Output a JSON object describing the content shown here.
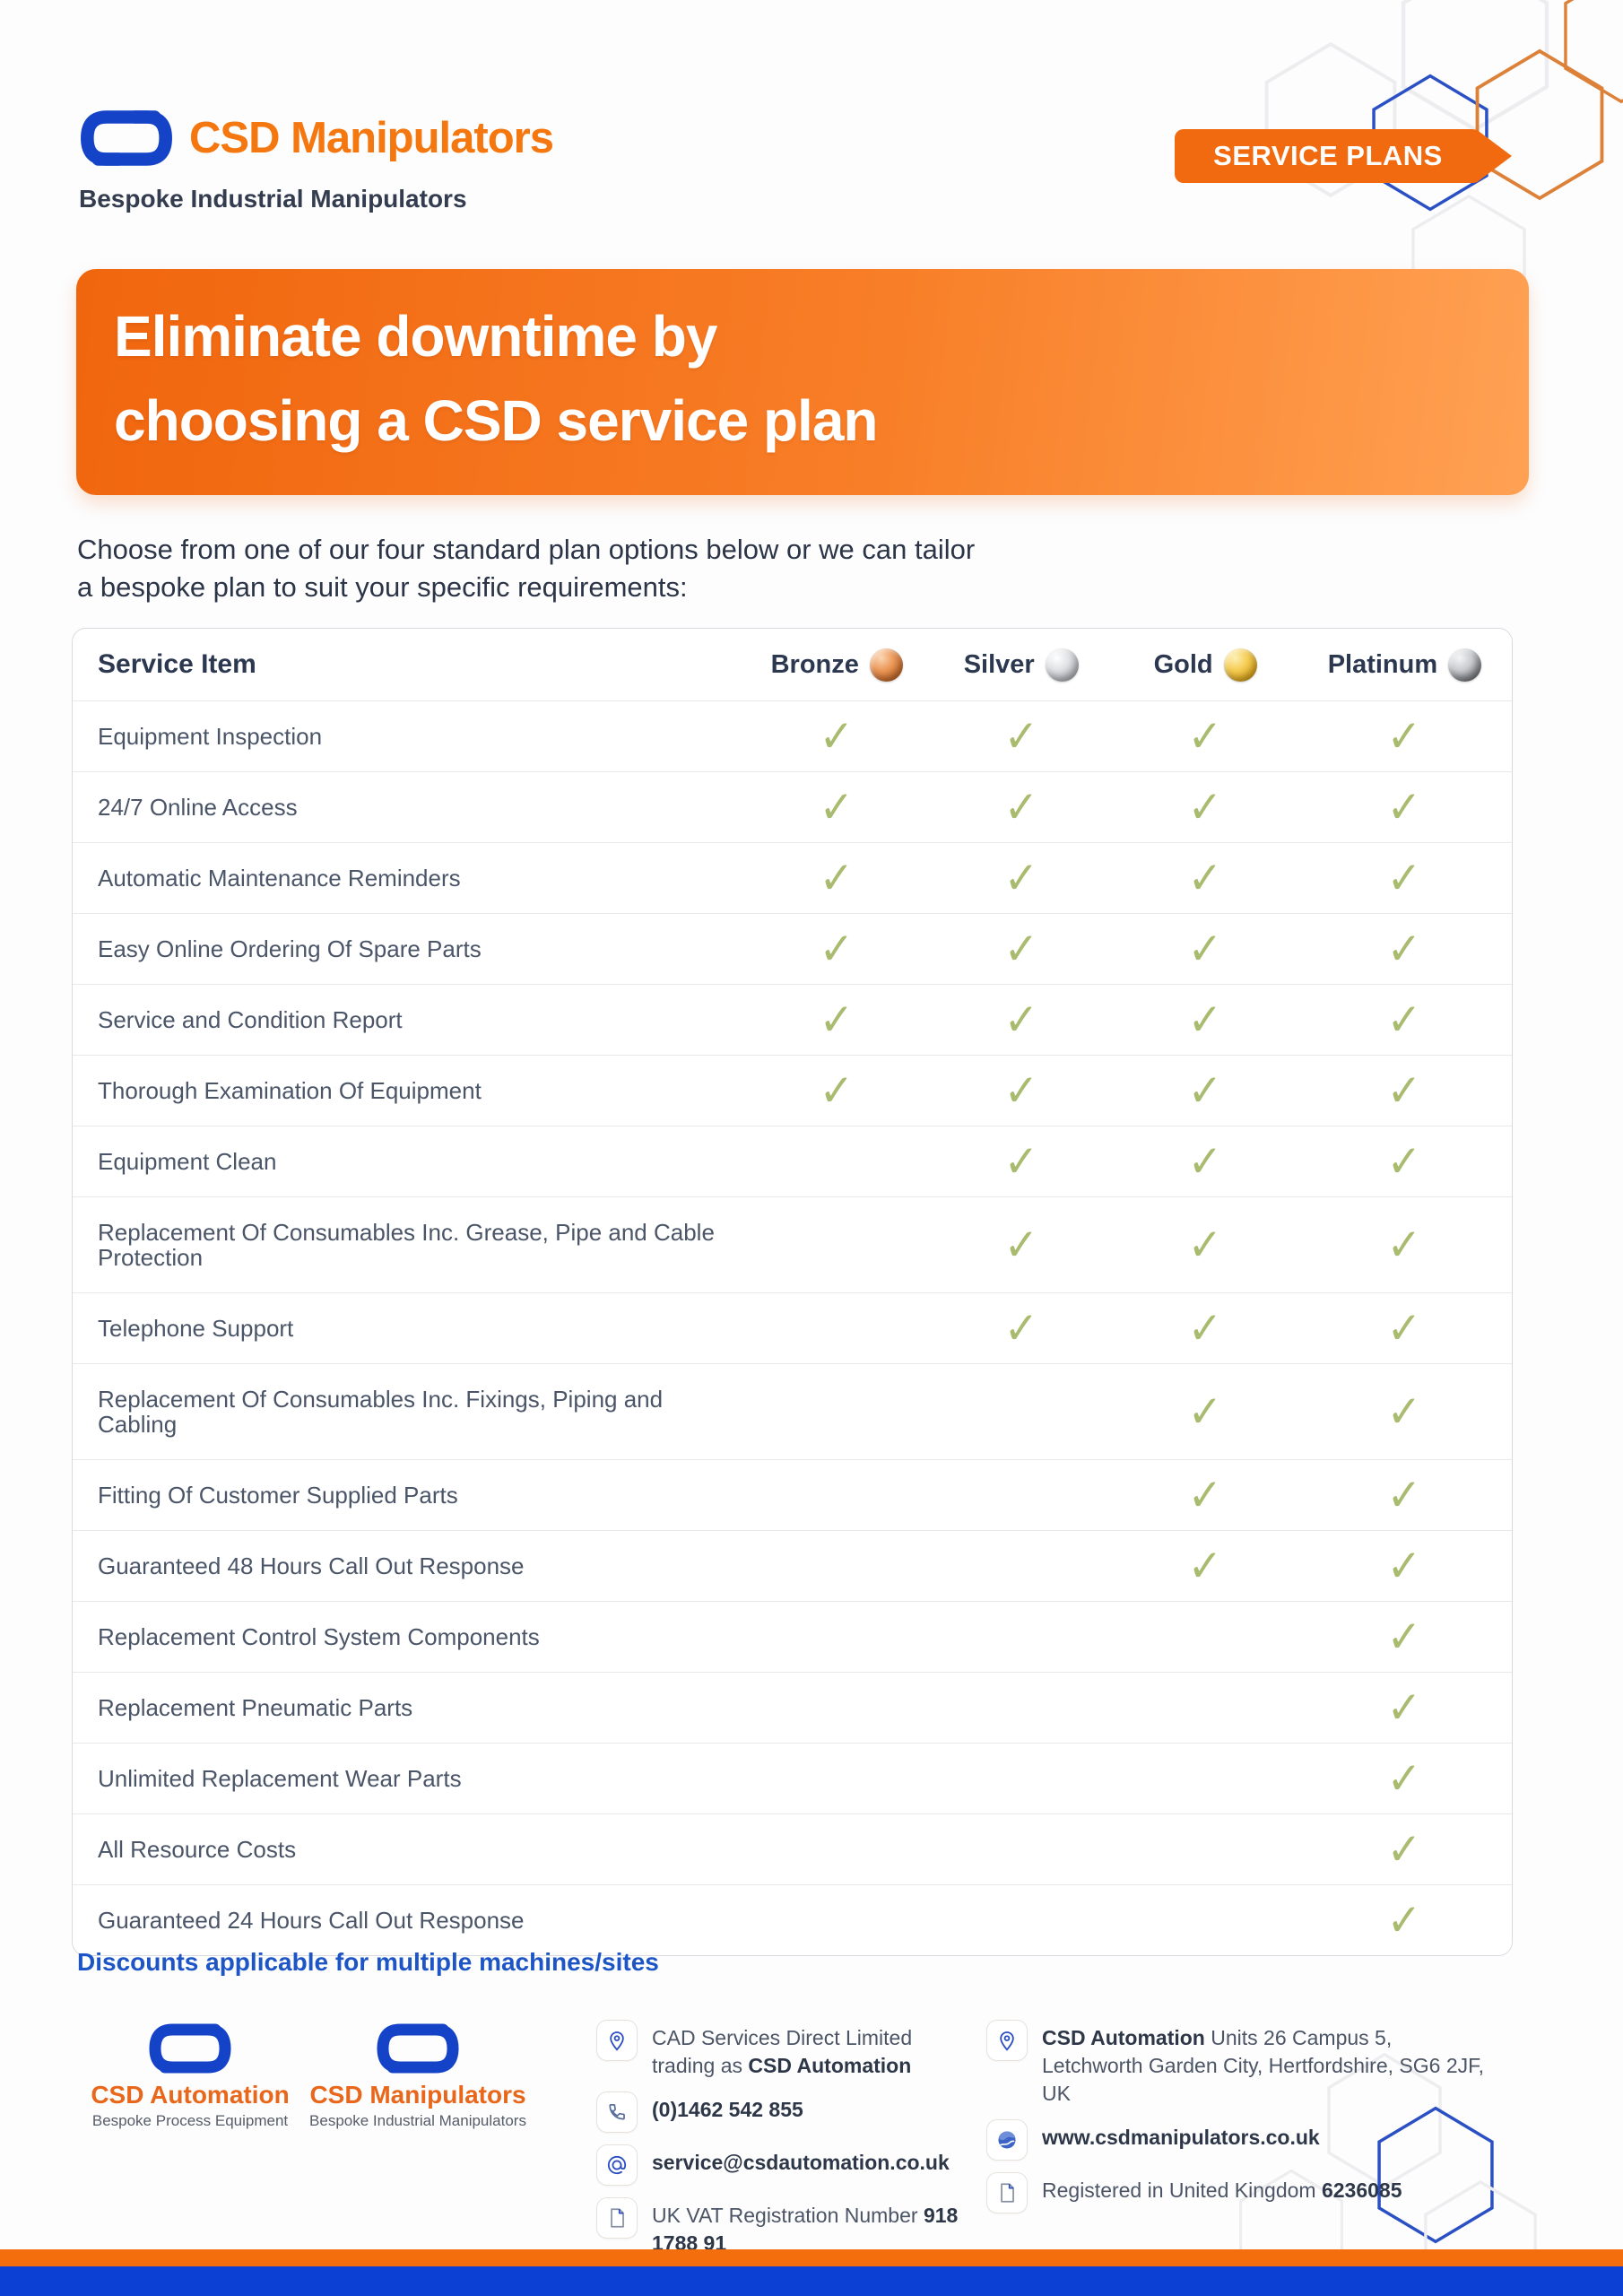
{
  "header": {
    "brand_name": "CSD Manipulators",
    "brand_tagline": "Bespoke Industrial Manipulators",
    "badge": "SERVICE PLANS"
  },
  "hero": {
    "title_line1": "Eliminate downtime by",
    "title_line2": "choosing a CSD service plan",
    "intro_line1": "Choose from one of our four standard plan options below or we can tailor",
    "intro_line2": "a bespoke plan to suit your specific requirements:"
  },
  "table": {
    "header": {
      "service_item": "Service Item",
      "plans": [
        {
          "label": "Bronze",
          "medal": "bronze"
        },
        {
          "label": "Silver",
          "medal": "silver"
        },
        {
          "label": "Gold",
          "medal": "gold"
        },
        {
          "label": "Platinum",
          "medal": "platinum"
        }
      ]
    },
    "check_symbol": "✓",
    "rows": [
      {
        "label": "Equipment Inspection",
        "plans": [
          true,
          true,
          true,
          true
        ]
      },
      {
        "label": "24/7 Online Access",
        "plans": [
          true,
          true,
          true,
          true
        ]
      },
      {
        "label": "Automatic Maintenance Reminders",
        "plans": [
          true,
          true,
          true,
          true
        ]
      },
      {
        "label": "Easy Online Ordering Of Spare Parts",
        "plans": [
          true,
          true,
          true,
          true
        ]
      },
      {
        "label": "Service and Condition Report",
        "plans": [
          true,
          true,
          true,
          true
        ]
      },
      {
        "label": "Thorough Examination Of Equipment",
        "plans": [
          true,
          true,
          true,
          true
        ]
      },
      {
        "label": "Equipment Clean",
        "plans": [
          false,
          true,
          true,
          true
        ]
      },
      {
        "label": "Replacement Of Consumables Inc. Grease, Pipe and Cable Protection",
        "plans": [
          false,
          true,
          true,
          true
        ]
      },
      {
        "label": "Telephone Support",
        "plans": [
          false,
          true,
          true,
          true
        ]
      },
      {
        "label": "Replacement Of Consumables Inc. Fixings, Piping and Cabling",
        "plans": [
          false,
          false,
          true,
          true
        ]
      },
      {
        "label": "Fitting Of Customer Supplied Parts",
        "plans": [
          false,
          false,
          true,
          true
        ]
      },
      {
        "label": "Guaranteed 48 Hours Call Out Response",
        "plans": [
          false,
          false,
          true,
          true
        ]
      },
      {
        "label": "Replacement Control System Components",
        "plans": [
          false,
          false,
          false,
          true
        ]
      },
      {
        "label": "Replacement Pneumatic Parts",
        "plans": [
          false,
          false,
          false,
          true
        ]
      },
      {
        "label": "Unlimited Replacement Wear Parts",
        "plans": [
          false,
          false,
          false,
          true
        ]
      },
      {
        "label": "All Resource Costs",
        "plans": [
          false,
          false,
          false,
          true
        ]
      },
      {
        "label": "Guaranteed 24 Hours Call Out Response",
        "plans": [
          false,
          false,
          false,
          true
        ]
      }
    ]
  },
  "note": "Discounts applicable for multiple machines/sites",
  "footer": {
    "logos": [
      {
        "name": "CSD Automation",
        "tagline": "Bespoke Process Equipment"
      },
      {
        "name": "CSD Manipulators",
        "tagline": "Bespoke Industrial Manipulators"
      }
    ],
    "contact_left": {
      "company_line1": "CAD Services Direct Limited",
      "company_line2_normal": "trading as ",
      "company_line2_bold": "CSD Automation",
      "phone": "(0)1462 542 855",
      "email": "service@csdautomation.co.uk",
      "vat_label": "UK VAT Registration Number ",
      "vat_number": "918 1788 91"
    },
    "contact_right": {
      "address_bold": "CSD Automation",
      "address_line1_normal": " Units 26 Campus 5,",
      "address_line2": "Letchworth Garden City, Hertfordshire, SG6 2JF, UK",
      "website": "www.csdmanipulators.co.uk",
      "registered_label": "Registered in United Kingdom ",
      "registered_number": "6236085"
    }
  },
  "colors": {
    "accent_orange": "#f26a10",
    "banner_gradient_start": "#f0660e",
    "banner_gradient_end": "#ffa153",
    "brand_blue": "#1543c8",
    "footer_bar_blue": "#0c3fd4",
    "footer_bar_orange": "#f56e0e",
    "check_green": "#a9bb6e",
    "note_blue": "#1d55c6",
    "medal_bronze": "#c96c2c",
    "medal_silver": "#b3b6bb",
    "medal_gold": "#dda821",
    "medal_platinum": "#7e8185"
  }
}
